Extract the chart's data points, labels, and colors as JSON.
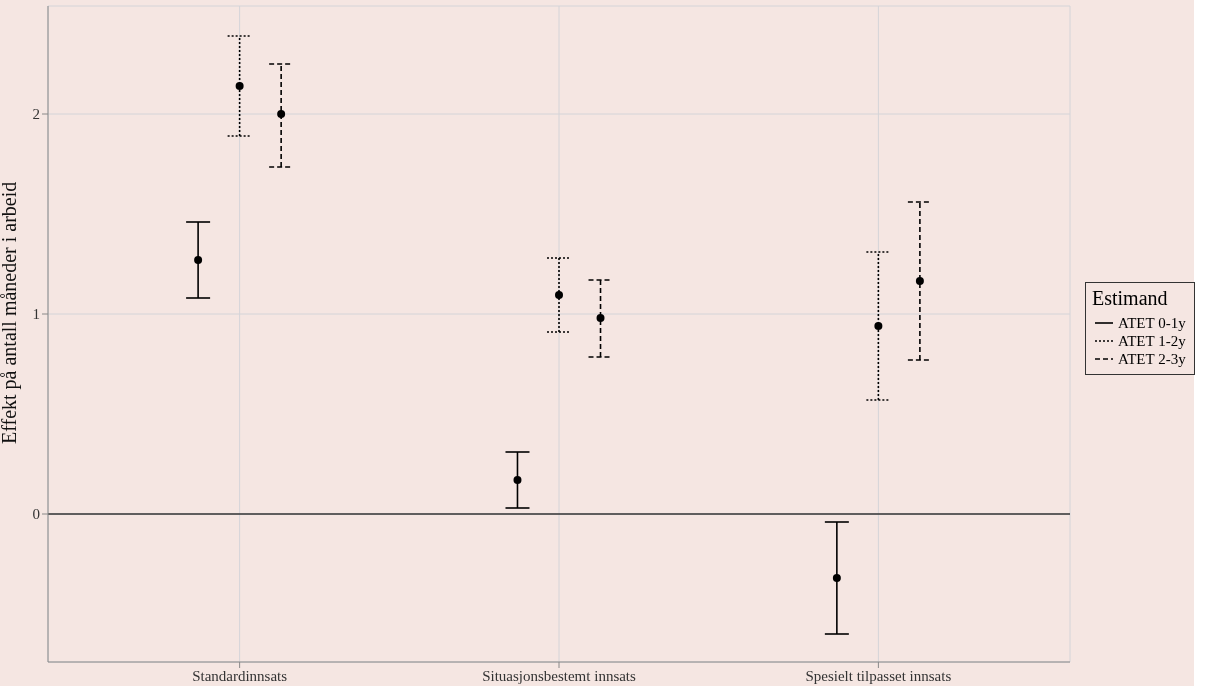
{
  "chart_data": {
    "type": "scatter",
    "ylabel": "Effekt på antall måneder i arbeid",
    "legend_title": "Estimand",
    "categories": [
      "Standardinnsats",
      "Situasjonsbestemt innsats",
      "Spesielt tilpasset innsats"
    ],
    "series": [
      {
        "name": "ATET 0-1y",
        "color": "#000000",
        "line_style": "solid",
        "values": [
          1.27,
          0.17,
          -0.32
        ],
        "errors": [
          [
            1.08,
            1.46
          ],
          [
            0.03,
            0.31
          ],
          [
            -0.6,
            -0.04
          ]
        ]
      },
      {
        "name": "ATET 1-2y",
        "color": "#000000",
        "line_style": "dotted",
        "values": [
          2.14,
          1.095,
          0.94
        ],
        "errors": [
          [
            1.89,
            2.39
          ],
          [
            0.91,
            1.28
          ],
          [
            0.57,
            1.31
          ]
        ]
      },
      {
        "name": "ATET 2-3y",
        "color": "#000000",
        "line_style": "dashed",
        "values": [
          2.0,
          0.98,
          1.165
        ],
        "errors": [
          [
            1.735,
            2.25
          ],
          [
            0.785,
            1.17
          ],
          [
            0.77,
            1.56
          ]
        ]
      }
    ],
    "ylim": [
      -0.74,
      2.54
    ],
    "yticks": [
      0,
      1,
      2
    ],
    "grid": true,
    "legend": "right",
    "marker": "circle",
    "ref_lines": [
      {
        "axis": "y",
        "value": 0,
        "color": "#333333"
      }
    ]
  }
}
